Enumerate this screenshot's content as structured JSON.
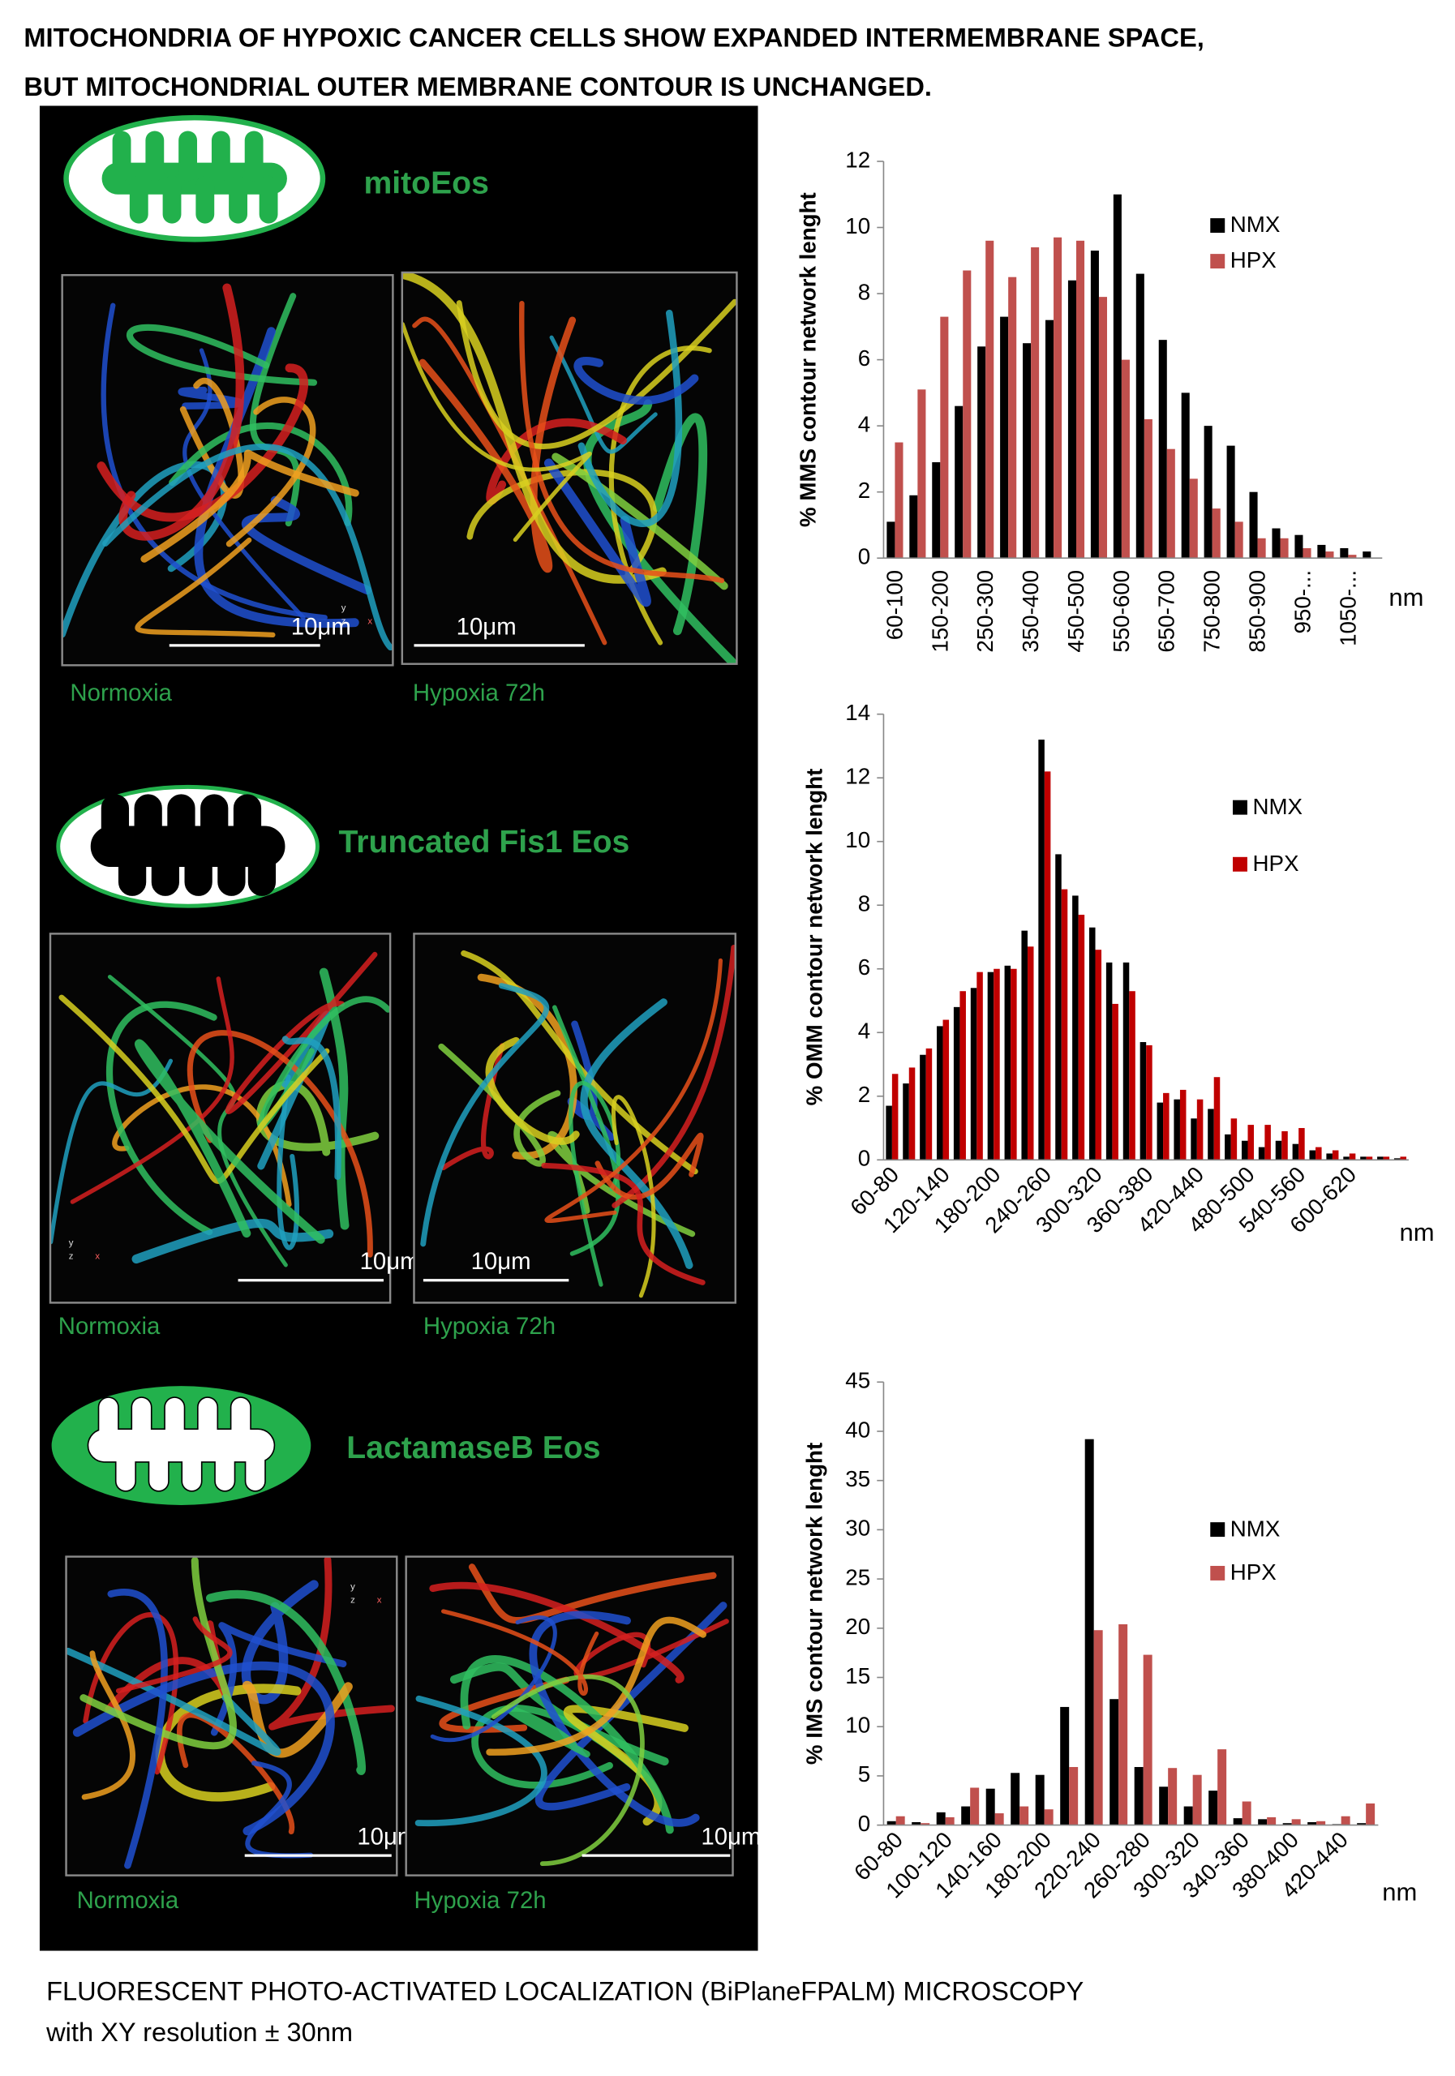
{
  "title": [
    "MITOCHONDRIA OF HYPOXIC CANCER CELLS SHOW EXPANDED INTERMEMBRANE SPACE,",
    "BUT MITOCHONDRIAL OUTER MEMBRANE CONTOUR IS UNCHANGED."
  ],
  "panels": [
    {
      "label": "mitoEos",
      "images": [
        "Normoxia",
        "Hypoxia 72h"
      ]
    },
    {
      "label": "Truncated Fis1 Eos",
      "images": [
        "Normoxia",
        "Hypoxia 72h"
      ]
    },
    {
      "label": "LactamaseB Eos",
      "images": [
        "Normoxia",
        "Hypoxia 72h"
      ]
    }
  ],
  "scale_bar": "10μm",
  "axis_triad": [
    "y",
    "z",
    "x"
  ],
  "chart_data": [
    {
      "type": "bar",
      "y_label": "% MMS contour network lenght",
      "x_label": "nm",
      "categories": [
        "60-100",
        null,
        "150-200",
        null,
        "250-300",
        null,
        "350-400",
        null,
        "450-500",
        null,
        "550-600",
        null,
        "650-700",
        null,
        "750-800",
        null,
        "850-900",
        null,
        "950-...",
        null,
        "1050-...",
        null
      ],
      "series": [
        {
          "name": "NMX",
          "color": "#000000",
          "values": [
            1.1,
            1.9,
            2.9,
            4.6,
            6.4,
            7.3,
            6.5,
            7.2,
            8.4,
            9.3,
            11.0,
            8.6,
            6.6,
            5.0,
            4.0,
            3.4,
            2.0,
            0.9,
            0.7,
            0.4,
            0.3,
            0.2
          ]
        },
        {
          "name": "HPX",
          "color": "#c0504d",
          "values": [
            3.5,
            5.1,
            7.3,
            8.7,
            9.6,
            8.5,
            9.4,
            9.7,
            9.6,
            7.9,
            6.0,
            4.2,
            3.3,
            2.4,
            1.5,
            1.1,
            0.6,
            0.6,
            0.3,
            0.2,
            0.1,
            0
          ]
        }
      ],
      "ylim": [
        0,
        12
      ],
      "yticks": [
        0,
        2,
        4,
        6,
        8,
        10,
        12
      ]
    },
    {
      "type": "bar",
      "y_label": "% OMM contour network lenght",
      "x_label": "nm",
      "categories": [
        "60-80",
        null,
        null,
        "120-140",
        null,
        null,
        "180-200",
        null,
        null,
        "240-260",
        null,
        null,
        "300-320",
        null,
        null,
        "360-380",
        null,
        null,
        "420-440",
        null,
        null,
        "480-500",
        null,
        null,
        "540-560",
        null,
        null,
        "600-620",
        null,
        null,
        null
      ],
      "series": [
        {
          "name": "NMX",
          "color": "#000000",
          "values": [
            1.7,
            2.4,
            3.3,
            4.2,
            4.8,
            5.4,
            5.9,
            6.1,
            7.2,
            13.2,
            9.6,
            8.3,
            7.3,
            6.2,
            6.2,
            3.7,
            1.8,
            1.9,
            1.3,
            1.6,
            0.8,
            0.6,
            0.4,
            0.6,
            0.5,
            0.3,
            0.2,
            0.1,
            0.1,
            0.1,
            0.05
          ]
        },
        {
          "name": "HPX",
          "color": "#c00000",
          "values": [
            2.7,
            2.9,
            3.5,
            4.4,
            5.3,
            5.9,
            6.0,
            6.0,
            6.7,
            12.2,
            8.5,
            7.7,
            6.6,
            4.9,
            5.3,
            3.6,
            2.1,
            2.2,
            1.9,
            2.6,
            1.3,
            1.1,
            1.1,
            0.9,
            1.0,
            0.4,
            0.3,
            0.2,
            0.1,
            0.1,
            0.1
          ]
        }
      ],
      "ylim": [
        0,
        14
      ],
      "yticks": [
        0,
        2,
        4,
        6,
        8,
        10,
        12,
        14
      ]
    },
    {
      "type": "bar",
      "y_label": "% IMS contour network lenght",
      "x_label": "nm",
      "categories": [
        "60-80",
        null,
        "100-120",
        null,
        "140-160",
        null,
        "180-200",
        null,
        "220-240",
        null,
        "260-280",
        null,
        "300-320",
        null,
        "340-360",
        null,
        "380-400",
        null,
        "420-440",
        null
      ],
      "series": [
        {
          "name": "NMX",
          "color": "#000000",
          "values": [
            0.4,
            0.3,
            1.3,
            1.9,
            3.7,
            5.3,
            5.1,
            12.0,
            39.2,
            12.8,
            5.9,
            3.9,
            1.9,
            3.5,
            0.7,
            0.6,
            0.2,
            0.3,
            0.1,
            0.2
          ]
        },
        {
          "name": "HPX",
          "color": "#c0504d",
          "values": [
            0.9,
            0.2,
            0.8,
            3.8,
            1.2,
            1.9,
            1.6,
            5.9,
            19.8,
            20.4,
            17.3,
            5.8,
            5.1,
            7.7,
            2.4,
            0.8,
            0.6,
            0.4,
            0.9,
            2.2
          ]
        }
      ],
      "ylim": [
        0,
        45
      ],
      "yticks": [
        0,
        5,
        10,
        15,
        20,
        25,
        30,
        35,
        40,
        45
      ]
    }
  ],
  "footer": [
    "FLUORESCENT PHOTO-ACTIVATED LOCALIZATION (BiPlaneFPALM) MICROSCOPY",
    "with XY resolution ± 30nm"
  ]
}
